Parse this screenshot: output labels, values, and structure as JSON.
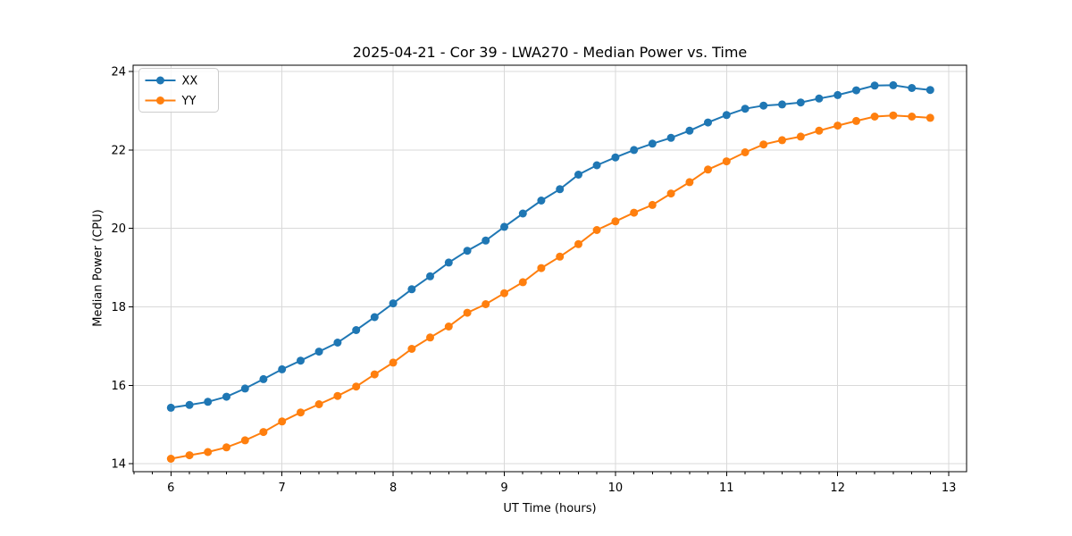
{
  "chart_data": {
    "type": "line",
    "title": "2025-04-21 - Cor 39 - LWA270 - Median Power vs. Time",
    "xlabel": "UT Time (hours)",
    "ylabel": "Median Power (CPU)",
    "xlim": [
      5.66,
      13.16
    ],
    "ylim": [
      13.8,
      24.16
    ],
    "xticks": [
      6,
      7,
      8,
      9,
      10,
      11,
      12,
      13
    ],
    "yticks": [
      14,
      16,
      18,
      20,
      22,
      24
    ],
    "x_minor_divisions": 6,
    "grid": true,
    "legend_position": "upper-left",
    "x": [
      6.0,
      6.167,
      6.333,
      6.5,
      6.667,
      6.833,
      7.0,
      7.167,
      7.333,
      7.5,
      7.667,
      7.833,
      8.0,
      8.167,
      8.333,
      8.5,
      8.667,
      8.833,
      9.0,
      9.167,
      9.333,
      9.5,
      9.667,
      9.833,
      10.0,
      10.167,
      10.333,
      10.5,
      10.667,
      10.833,
      11.0,
      11.167,
      11.333,
      11.5,
      11.667,
      11.833,
      12.0,
      12.167,
      12.333,
      12.5,
      12.667,
      12.833
    ],
    "series": [
      {
        "name": "XX",
        "color": "#1f77b4",
        "values": [
          15.43,
          15.5,
          15.58,
          15.71,
          15.92,
          16.16,
          16.41,
          16.63,
          16.86,
          17.09,
          17.41,
          17.74,
          18.09,
          18.45,
          18.78,
          19.13,
          19.43,
          19.69,
          20.04,
          20.38,
          20.71,
          21.0,
          21.37,
          21.61,
          21.81,
          22.0,
          22.16,
          22.31,
          22.49,
          22.7,
          22.89,
          23.05,
          23.13,
          23.16,
          23.21,
          23.31,
          23.4,
          23.52,
          23.64,
          23.65,
          23.58,
          23.53
        ]
      },
      {
        "name": "YY",
        "color": "#ff7f0e",
        "values": [
          14.13,
          14.22,
          14.3,
          14.42,
          14.6,
          14.81,
          15.08,
          15.31,
          15.52,
          15.73,
          15.97,
          16.28,
          16.58,
          16.93,
          17.22,
          17.5,
          17.85,
          18.07,
          18.35,
          18.63,
          18.99,
          19.28,
          19.6,
          19.96,
          20.18,
          20.4,
          20.6,
          20.89,
          21.18,
          21.5,
          21.71,
          21.94,
          22.14,
          22.25,
          22.34,
          22.49,
          22.62,
          22.74,
          22.85,
          22.88,
          22.85,
          22.82
        ]
      }
    ]
  },
  "colors": {
    "background": "#ffffff",
    "spine": "#000000",
    "grid": "#d9d9d9",
    "legend_border": "#cccccc",
    "legend_background": "#ffffff"
  }
}
